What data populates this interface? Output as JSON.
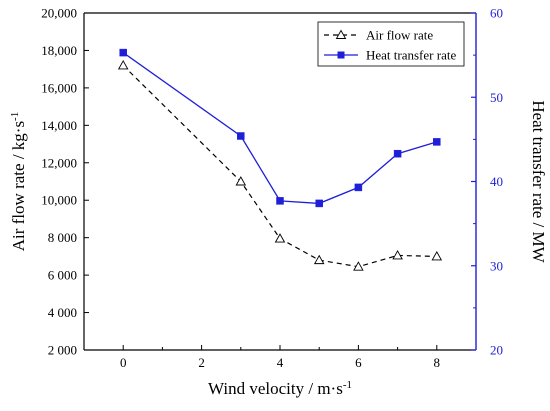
{
  "colors": {
    "axis": "#000000",
    "right_axis": "#1f1fd8",
    "series_air": "#000000",
    "series_heat": "#1f1fd8"
  },
  "chart_data": {
    "type": "line",
    "x_label": "Wind velocity / m·s",
    "x_label_sup": "-1",
    "y_left_label": "Air flow rate / kg·s",
    "y_left_label_sup": "-1",
    "y_right_label": "Heat transfer rate / MW",
    "xlim": [
      -1,
      9
    ],
    "ylim_left": [
      2000,
      20000
    ],
    "ylim_right": [
      20,
      60
    ],
    "x_ticks": [
      0,
      2,
      4,
      6,
      8
    ],
    "x_tick_labels": [
      "0",
      "2",
      "4",
      "6",
      "8"
    ],
    "y_left_ticks": [
      2000,
      4000,
      6000,
      8000,
      10000,
      12000,
      14000,
      16000,
      18000,
      20000
    ],
    "y_left_tick_labels": [
      "2 000",
      "4 000",
      "6 000",
      "8 000",
      "10,000",
      "12,000",
      "14,000",
      "16,000",
      "18,000",
      "20,000"
    ],
    "y_right_ticks": [
      20,
      30,
      40,
      50,
      60
    ],
    "y_right_tick_labels": [
      "20",
      "30",
      "40",
      "50",
      "60"
    ],
    "legend_position": "top-right",
    "grid": false,
    "series": [
      {
        "name": "Air flow rate",
        "axis": "left",
        "style": "dashed",
        "marker": "open-triangle",
        "x": [
          0,
          3,
          4,
          5,
          6,
          7,
          8
        ],
        "y": [
          17200,
          11000,
          7950,
          6800,
          6450,
          7050,
          7000
        ]
      },
      {
        "name": "Heat transfer rate",
        "axis": "right",
        "style": "solid",
        "marker": "filled-square",
        "x": [
          0,
          3,
          4,
          5,
          6,
          7,
          8
        ],
        "y": [
          55.3,
          45.4,
          37.7,
          37.4,
          39.3,
          43.3,
          44.7
        ]
      }
    ]
  }
}
